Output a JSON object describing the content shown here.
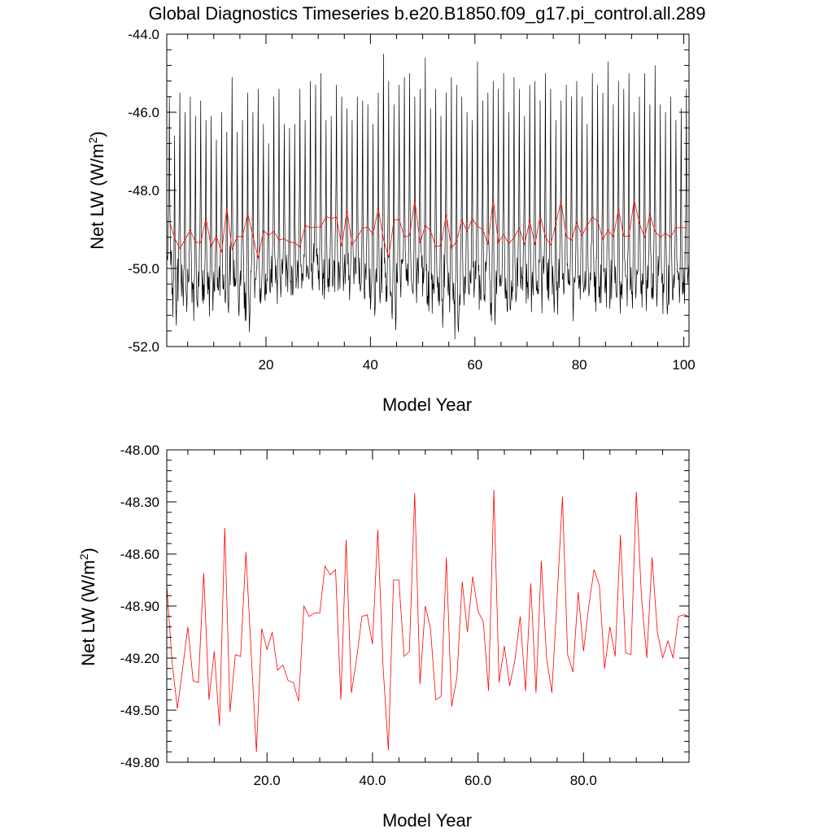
{
  "figure": {
    "title": "Global Diagnostics Timeseries b.e20.B1850.f09_g17.pi_control.all.289"
  },
  "chart_data": [
    {
      "type": "line",
      "xlabel": "Model Year",
      "ylabel": "Net LW (W/m",
      "ylabel_sup": "2",
      "ylabel_close": ")",
      "xlim": [
        1,
        101
      ],
      "ylim": [
        -52.0,
        -44.0
      ],
      "x_ticks": [
        20,
        40,
        60,
        80,
        100
      ],
      "x_tick_labels": [
        "20",
        "40",
        "60",
        "80",
        "100"
      ],
      "y_ticks": [
        -52.0,
        -50.0,
        -48.0,
        -46.0,
        -44.0
      ],
      "y_tick_labels": [
        "-52.0",
        "-50.0",
        "-48.0",
        "-46.0",
        "-44.0"
      ],
      "grid": false,
      "series": [
        {
          "color": "#000000",
          "monthly_resolution": true,
          "seasonal_cycle_peak_values": [
            -45.6,
            -46.6,
            -45.5,
            -46.0,
            -45.6,
            -46.1,
            -45.7,
            -46.2,
            -46.1,
            -46.7,
            -46.0,
            -46.5,
            -45.1,
            -46.5,
            -46.2,
            -45.5,
            -46.0,
            -45.4,
            -46.3,
            -46.8,
            -45.6,
            -45.4,
            -46.3,
            -46.4,
            -46.3,
            -45.4,
            -46.2,
            -45.2,
            -45.3,
            -45.0,
            -46.2,
            -46.1,
            -45.3,
            -45.6,
            -45.9,
            -46.2,
            -45.6,
            -45.7,
            -45.8,
            -46.3,
            -45.5,
            -44.5,
            -45.2,
            -45.8,
            -45.3,
            -45.1,
            -45.0,
            -45.6,
            -45.4,
            -44.6,
            -45.9,
            -45.4,
            -46.1,
            -45.5,
            -45.1,
            -45.3,
            -45.6,
            -46.0,
            -46.2,
            -44.7,
            -45.7,
            -45.5,
            -45.2,
            -45.4,
            -45.0,
            -46.0,
            -45.1,
            -45.4,
            -46.1,
            -45.3,
            -45.2,
            -45.7,
            -45.0,
            -45.4,
            -46.2,
            -45.7,
            -45.3,
            -45.6,
            -45.2,
            -45.6,
            -46.3,
            -45.0,
            -45.3,
            -45.5,
            -44.7,
            -45.8,
            -45.2,
            -45.4,
            -45.0,
            -46.0,
            -45.6,
            -45.0,
            -45.8,
            -44.8,
            -45.8,
            -46.0,
            -45.6,
            -46.2,
            -45.9,
            -45.4,
            -45.7
          ],
          "seasonal_cycle_trough_values": [
            -50.3,
            -51.5,
            -50.9,
            -51.3,
            -51.0,
            -51.4,
            -50.8,
            -51.0,
            -51.2,
            -51.0,
            -50.9,
            -51.4,
            -50.6,
            -51.3,
            -51.0,
            -51.7,
            -50.9,
            -50.8,
            -51.1,
            -51.0,
            -50.7,
            -51.0,
            -50.6,
            -50.9,
            -51.0,
            -50.9,
            -50.7,
            -51.0,
            -50.5,
            -50.6,
            -50.9,
            -50.8,
            -50.6,
            -50.9,
            -50.6,
            -50.9,
            -50.7,
            -51.0,
            -50.8,
            -51.2,
            -50.9,
            -50.7,
            -51.0,
            -51.5,
            -50.8,
            -50.6,
            -50.9,
            -51.1,
            -50.7,
            -51.0,
            -51.2,
            -51.0,
            -51.6,
            -50.9,
            -51.1,
            -51.8,
            -51.2,
            -51.0,
            -50.8,
            -51.0,
            -51.3,
            -50.8,
            -51.5,
            -51.0,
            -50.9,
            -51.8,
            -51.3,
            -51.0,
            -50.9,
            -51.2,
            -50.9,
            -51.1,
            -50.8,
            -51.0,
            -51.3,
            -50.7,
            -51.0,
            -51.2,
            -50.8,
            -50.9,
            -51.0,
            -50.8,
            -51.1,
            -50.9,
            -51.0,
            -50.9,
            -51.2,
            -50.8,
            -51.0,
            -51.0,
            -50.9,
            -51.2,
            -50.8,
            -51.0,
            -50.9,
            -51.3,
            -51.0,
            -50.6,
            -51.0,
            -50.9,
            -50.8
          ]
        },
        {
          "color": "#ff0000",
          "annual_mean": true,
          "x": [
            1,
            2,
            3,
            4,
            5,
            6,
            7,
            8,
            9,
            10,
            11,
            12,
            13,
            14,
            15,
            16,
            17,
            18,
            19,
            20,
            21,
            22,
            23,
            24,
            25,
            26,
            27,
            28,
            29,
            30,
            31,
            32,
            33,
            34,
            35,
            36,
            37,
            38,
            39,
            40,
            41,
            42,
            43,
            44,
            45,
            46,
            47,
            48,
            49,
            50,
            51,
            52,
            53,
            54,
            55,
            56,
            57,
            58,
            59,
            60,
            61,
            62,
            63,
            64,
            65,
            66,
            67,
            68,
            69,
            70,
            71,
            72,
            73,
            74,
            75,
            76,
            77,
            78,
            79,
            80,
            81,
            82,
            83,
            84,
            85,
            86,
            87,
            88,
            89,
            90,
            91,
            92,
            93,
            94,
            95,
            96,
            97,
            98,
            99,
            100
          ],
          "values": [
            -48.78,
            -49.22,
            -49.49,
            -49.26,
            -49.02,
            -49.33,
            -49.34,
            -48.71,
            -49.44,
            -49.16,
            -49.59,
            -48.45,
            -49.51,
            -49.18,
            -49.19,
            -48.59,
            -49.17,
            -49.74,
            -49.03,
            -49.15,
            -49.05,
            -49.27,
            -49.24,
            -49.33,
            -49.34,
            -49.45,
            -48.9,
            -48.96,
            -48.94,
            -48.94,
            -48.67,
            -48.72,
            -48.69,
            -49.44,
            -48.52,
            -49.4,
            -49.2,
            -48.96,
            -48.95,
            -49.12,
            -48.46,
            -49.25,
            -49.73,
            -48.75,
            -48.75,
            -49.19,
            -49.16,
            -48.25,
            -49.35,
            -48.9,
            -49.03,
            -49.44,
            -49.42,
            -48.62,
            -49.48,
            -49.31,
            -48.76,
            -49.05,
            -48.73,
            -48.93,
            -48.99,
            -49.39,
            -48.23,
            -49.34,
            -49.13,
            -49.36,
            -49.21,
            -48.96,
            -49.39,
            -48.77,
            -49.4,
            -48.64,
            -49.2,
            -49.4,
            -48.85,
            -48.27,
            -49.18,
            -49.28,
            -48.82,
            -49.16,
            -48.9,
            -48.69,
            -48.78,
            -49.26,
            -49.02,
            -49.19,
            -48.49,
            -49.17,
            -49.18,
            -48.24,
            -48.85,
            -49.2,
            -48.62,
            -49.05,
            -49.2,
            -49.1,
            -49.2,
            -48.96,
            -48.95,
            -48.96
          ]
        }
      ]
    },
    {
      "type": "line",
      "xlabel": "Model Year",
      "ylabel": "Net LW (W/m",
      "ylabel_sup": "2",
      "ylabel_close": ")",
      "xlim": [
        1,
        100
      ],
      "ylim": [
        -49.8,
        -48.0
      ],
      "x_ticks": [
        20,
        40,
        60,
        80
      ],
      "x_tick_labels": [
        "20.0",
        "40.0",
        "60.0",
        "80.0"
      ],
      "y_ticks": [
        -49.8,
        -49.5,
        -49.2,
        -48.9,
        -48.6,
        -48.3,
        -48.0
      ],
      "y_tick_labels": [
        "-49.80",
        "-49.50",
        "-49.20",
        "-48.90",
        "-48.60",
        "-48.30",
        "-48.00"
      ],
      "grid": false,
      "series": [
        {
          "color": "#ff0000",
          "ref": "annual_mean"
        }
      ]
    }
  ]
}
